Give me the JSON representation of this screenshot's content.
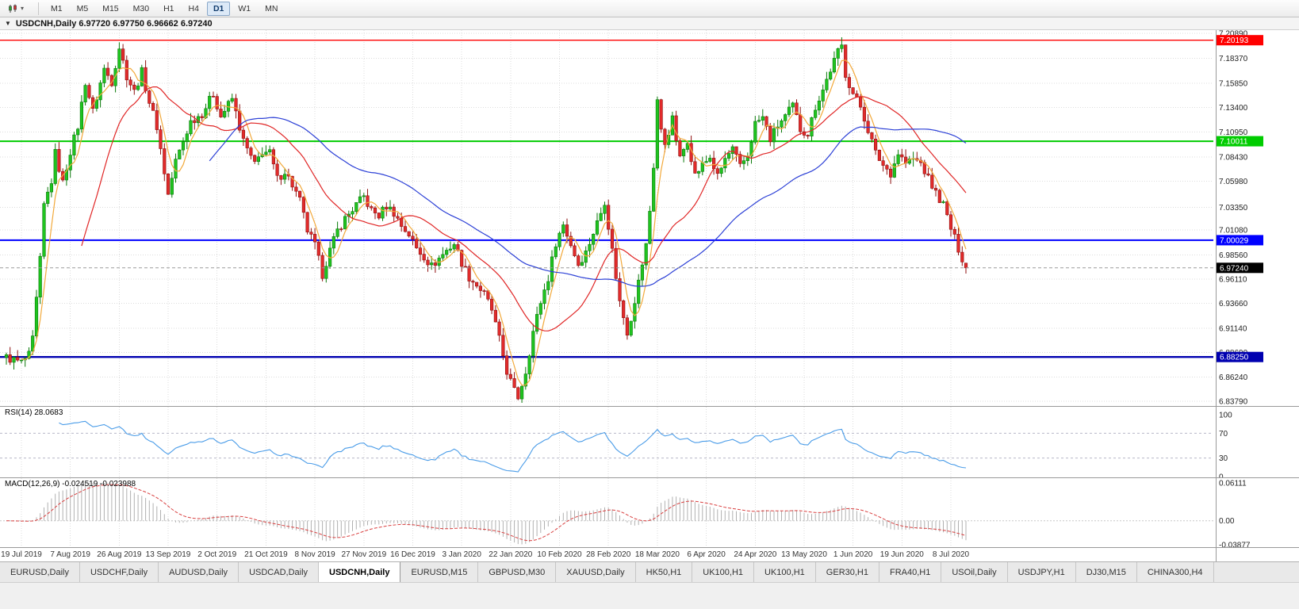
{
  "icons": {
    "dropdown": "▼",
    "toolbar_dropdown": "▾"
  },
  "toolbar": {
    "timeframes": [
      {
        "label": "M1",
        "active": false
      },
      {
        "label": "M5",
        "active": false
      },
      {
        "label": "M15",
        "active": false
      },
      {
        "label": "M30",
        "active": false
      },
      {
        "label": "H1",
        "active": false
      },
      {
        "label": "H4",
        "active": false
      },
      {
        "label": "D1",
        "active": true
      },
      {
        "label": "W1",
        "active": false
      },
      {
        "label": "MN",
        "active": false
      }
    ]
  },
  "chart_header": {
    "symbol_ohlc": "USDCNH,Daily 6.97720 6.97750 6.96662 6.97240"
  },
  "price_axis": {
    "top_value": 7.2089,
    "bottom_value": 6.8379,
    "labels": [
      "7.20890",
      "7.18370",
      "7.15850",
      "7.13400",
      "7.10950",
      "7.08430",
      "7.05980",
      "7.03350",
      "7.01080",
      "6.98560",
      "6.96110",
      "6.93660",
      "6.91140",
      "6.88690",
      "6.86240",
      "6.83790"
    ]
  },
  "horizontal_lines": [
    {
      "value": 7.20193,
      "label": "7.20193",
      "color": "#ff0000",
      "width": 1.4
    },
    {
      "value": 7.10011,
      "label": "7.10011",
      "color": "#00cc00",
      "width": 2
    },
    {
      "value": 7.00029,
      "label": "7.00029",
      "color": "#0000ff",
      "width": 2
    },
    {
      "value": 6.8825,
      "label": "6.88250",
      "color": "#0000b0",
      "width": 2.4
    }
  ],
  "current_price": {
    "value": 6.9724,
    "label": "6.97240",
    "tag_color": "#000000"
  },
  "time_axis": [
    "19 Jul 2019",
    "7 Aug 2019",
    "26 Aug 2019",
    "13 Sep 2019",
    "2 Oct 2019",
    "21 Oct 2019",
    "8 Nov 2019",
    "27 Nov 2019",
    "16 Dec 2019",
    "3 Jan 2020",
    "22 Jan 2020",
    "10 Feb 2020",
    "28 Feb 2020",
    "18 Mar 2020",
    "6 Apr 2020",
    "24 Apr 2020",
    "13 May 2020",
    "1 Jun 2020",
    "19 Jun 2020",
    "8 Jul 2020"
  ],
  "rsi_panel": {
    "label": "RSI(14) 28.0683",
    "value": 28.0683,
    "axis_labels": [
      "100",
      "70",
      "30",
      "0"
    ]
  },
  "macd_panel": {
    "label": "MACD(12,26,9) -0.024519 -0.023988",
    "axis_labels": [
      "0.06111",
      "0.00",
      "-0.03877"
    ]
  },
  "tabs": [
    {
      "label": "EURUSD,Daily",
      "active": false
    },
    {
      "label": "USDCHF,Daily",
      "active": false
    },
    {
      "label": "AUDUSD,Daily",
      "active": false
    },
    {
      "label": "USDCAD,Daily",
      "active": false
    },
    {
      "label": "USDCNH,Daily",
      "active": true
    },
    {
      "label": "EURUSD,M15",
      "active": false
    },
    {
      "label": "GBPUSD,M30",
      "active": false
    },
    {
      "label": "XAUUSD,Daily",
      "active": false
    },
    {
      "label": "HK50,H1",
      "active": false
    },
    {
      "label": "UK100,H1",
      "active": false
    },
    {
      "label": "UK100,H1",
      "active": false
    },
    {
      "label": "GER30,H1",
      "active": false
    },
    {
      "label": "FRA40,H1",
      "active": false
    },
    {
      "label": "USOil,Daily",
      "active": false
    },
    {
      "label": "USDJPY,H1",
      "active": false
    },
    {
      "label": "DJ30,M15",
      "active": false
    },
    {
      "label": "CHINA300,H4",
      "active": false
    }
  ],
  "colors": {
    "bull": "#1fc41f",
    "bull_border": "#0a7a0a",
    "bear": "#e22b2b",
    "bear_border": "#8f1010",
    "grid": "#dcdcdc",
    "rsi_line": "#4a9ce8",
    "rsi_level": "#b8b8c8",
    "macd_hist": "#b0b0b0",
    "macd_signal": "#d94040",
    "bid_line": "#9a9a9a"
  },
  "chart_data": {
    "type": "candlestick",
    "symbol": "USDCNH",
    "timeframe": "Daily",
    "ohlc_readout": {
      "open": 6.9772,
      "high": 6.9775,
      "low": 6.96662,
      "close": 6.9724
    },
    "candle_count": 256,
    "first_label_index": 4,
    "label_step": 13,
    "last_close": 6.9724,
    "price_keypoints": [
      [
        0,
        6.882
      ],
      [
        4,
        6.877
      ],
      [
        6,
        6.884
      ],
      [
        7,
        6.9
      ],
      [
        9,
        6.98
      ],
      [
        10,
        7.035
      ],
      [
        12,
        7.06
      ],
      [
        13,
        7.088
      ],
      [
        15,
        7.058
      ],
      [
        17,
        7.09
      ],
      [
        19,
        7.115
      ],
      [
        21,
        7.16
      ],
      [
        23,
        7.13
      ],
      [
        26,
        7.173
      ],
      [
        28,
        7.16
      ],
      [
        30,
        7.195
      ],
      [
        32,
        7.166
      ],
      [
        34,
        7.15
      ],
      [
        36,
        7.17
      ],
      [
        38,
        7.14
      ],
      [
        40,
        7.115
      ],
      [
        43,
        7.046
      ],
      [
        45,
        7.08
      ],
      [
        47,
        7.1
      ],
      [
        49,
        7.12
      ],
      [
        52,
        7.128
      ],
      [
        55,
        7.148
      ],
      [
        57,
        7.125
      ],
      [
        60,
        7.143
      ],
      [
        63,
        7.1
      ],
      [
        66,
        7.076
      ],
      [
        68,
        7.09
      ],
      [
        70,
        7.088
      ],
      [
        72,
        7.062
      ],
      [
        74,
        7.07
      ],
      [
        76,
        7.056
      ],
      [
        78,
        7.04
      ],
      [
        80,
        7.01
      ],
      [
        82,
        6.995
      ],
      [
        84,
        6.966
      ],
      [
        86,
        6.99
      ],
      [
        88,
        7.01
      ],
      [
        90,
        7.022
      ],
      [
        93,
        7.036
      ],
      [
        95,
        7.044
      ],
      [
        97,
        7.03
      ],
      [
        99,
        7.025
      ],
      [
        101,
        7.035
      ],
      [
        103,
        7.028
      ],
      [
        105,
        7.015
      ],
      [
        107,
        7.006
      ],
      [
        109,
        6.992
      ],
      [
        111,
        6.984
      ],
      [
        113,
        6.974
      ],
      [
        115,
        6.982
      ],
      [
        117,
        6.99
      ],
      [
        119,
        6.997
      ],
      [
        121,
        6.978
      ],
      [
        123,
        6.963
      ],
      [
        125,
        6.955
      ],
      [
        127,
        6.946
      ],
      [
        129,
        6.93
      ],
      [
        131,
        6.9
      ],
      [
        133,
        6.868
      ],
      [
        135,
        6.848
      ],
      [
        136,
        6.842
      ],
      [
        138,
        6.868
      ],
      [
        140,
        6.908
      ],
      [
        142,
        6.938
      ],
      [
        144,
        6.962
      ],
      [
        146,
        6.998
      ],
      [
        148,
        7.016
      ],
      [
        150,
        6.996
      ],
      [
        152,
        6.976
      ],
      [
        154,
        6.988
      ],
      [
        156,
        7.008
      ],
      [
        158,
        7.028
      ],
      [
        159,
        7.04
      ],
      [
        161,
        6.99
      ],
      [
        163,
        6.938
      ],
      [
        165,
        6.908
      ],
      [
        166,
        6.922
      ],
      [
        168,
        6.958
      ],
      [
        170,
        6.995
      ],
      [
        171,
        7.03
      ],
      [
        172,
        7.075
      ],
      [
        173,
        7.142
      ],
      [
        174,
        7.11
      ],
      [
        175,
        7.098
      ],
      [
        177,
        7.122
      ],
      [
        179,
        7.082
      ],
      [
        181,
        7.102
      ],
      [
        183,
        7.066
      ],
      [
        185,
        7.076
      ],
      [
        187,
        7.084
      ],
      [
        189,
        7.064
      ],
      [
        191,
        7.082
      ],
      [
        193,
        7.092
      ],
      [
        195,
        7.074
      ],
      [
        197,
        7.086
      ],
      [
        199,
        7.118
      ],
      [
        201,
        7.124
      ],
      [
        203,
        7.102
      ],
      [
        205,
        7.116
      ],
      [
        207,
        7.125
      ],
      [
        209,
        7.136
      ],
      [
        211,
        7.112
      ],
      [
        213,
        7.108
      ],
      [
        215,
        7.135
      ],
      [
        217,
        7.152
      ],
      [
        219,
        7.172
      ],
      [
        221,
        7.19
      ],
      [
        222,
        7.196
      ],
      [
        223,
        7.168
      ],
      [
        225,
        7.148
      ],
      [
        227,
        7.135
      ],
      [
        229,
        7.112
      ],
      [
        231,
        7.088
      ],
      [
        233,
        7.076
      ],
      [
        235,
        7.068
      ],
      [
        237,
        7.088
      ],
      [
        239,
        7.078
      ],
      [
        241,
        7.082
      ],
      [
        243,
        7.078
      ],
      [
        245,
        7.062
      ],
      [
        247,
        7.048
      ],
      [
        249,
        7.036
      ],
      [
        251,
        7.012
      ],
      [
        253,
        6.992
      ],
      [
        255,
        6.9724
      ]
    ],
    "moving_averages": [
      {
        "period": 5,
        "color": "#f2a93b"
      },
      {
        "period": 21,
        "color": "#e02525"
      },
      {
        "period": 55,
        "color": "#2b3fd6"
      }
    ],
    "rsi": {
      "period": 14,
      "current": 28.0683,
      "levels": [
        70,
        30
      ]
    },
    "macd": {
      "fast": 12,
      "slow": 26,
      "signal": 9,
      "current": -0.024519,
      "signal_current": -0.023988,
      "scale_top": 0.06111,
      "scale_bottom": -0.03877
    }
  }
}
